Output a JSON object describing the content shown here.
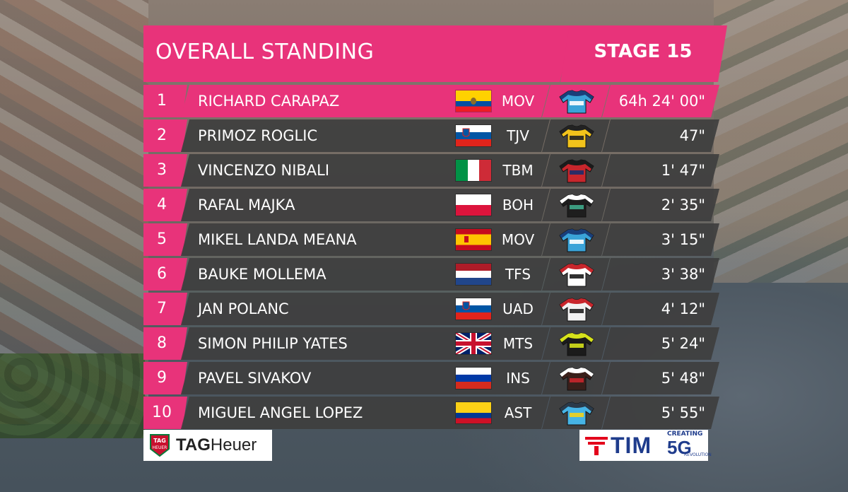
{
  "header": {
    "title": "OVERALL STANDING",
    "stage": "STAGE 15"
  },
  "riders": [
    {
      "rank": "1",
      "name": "RICHARD CARAPAZ",
      "flag": "ecuador",
      "team": "MOV",
      "gap": "64h 24' 00\"",
      "jersey": {
        "body": "#3aa3d8",
        "trim": "#1a3f7a",
        "accent": "#ffffff"
      }
    },
    {
      "rank": "2",
      "name": "PRIMOZ ROGLIC",
      "flag": "slovenia",
      "team": "TJV",
      "gap": "47\"",
      "jersey": {
        "body": "#f2c31b",
        "trim": "#222222",
        "accent": "#222222"
      }
    },
    {
      "rank": "3",
      "name": "VINCENZO NIBALI",
      "flag": "italy",
      "team": "TBM",
      "gap": "1' 47\"",
      "jersey": {
        "body": "#c8262c",
        "trim": "#1b1b1b",
        "accent": "#1b2e6b"
      }
    },
    {
      "rank": "4",
      "name": "RAFAL MAJKA",
      "flag": "poland",
      "team": "BOH",
      "gap": "2' 35\"",
      "jersey": {
        "body": "#1e1e1e",
        "trim": "#ffffff",
        "accent": "#3fa88a"
      }
    },
    {
      "rank": "5",
      "name": "MIKEL LANDA MEANA",
      "flag": "spain",
      "team": "MOV",
      "gap": "3' 15\"",
      "jersey": {
        "body": "#3aa3d8",
        "trim": "#1a3f7a",
        "accent": "#ffffff"
      }
    },
    {
      "rank": "6",
      "name": "BAUKE MOLLEMA",
      "flag": "netherlands",
      "team": "TFS",
      "gap": "3' 38\"",
      "jersey": {
        "body": "#ffffff",
        "trim": "#c8262c",
        "accent": "#1b1b1b"
      }
    },
    {
      "rank": "7",
      "name": "JAN POLANC",
      "flag": "slovenia",
      "team": "UAD",
      "gap": "4' 12\"",
      "jersey": {
        "body": "#f2f2f2",
        "trim": "#c8262c",
        "accent": "#222222"
      }
    },
    {
      "rank": "8",
      "name": "SIMON PHILIP YATES",
      "flag": "uk",
      "team": "MTS",
      "gap": "5' 24\"",
      "jersey": {
        "body": "#1b1b1b",
        "trim": "#d6e21b",
        "accent": "#d6e21b"
      }
    },
    {
      "rank": "9",
      "name": "PAVEL SIVAKOV",
      "flag": "russia",
      "team": "INS",
      "gap": "5' 48\"",
      "jersey": {
        "body": "#3a1f1a",
        "trim": "#ffffff",
        "accent": "#c8262c"
      }
    },
    {
      "rank": "10",
      "name": "MIGUEL ANGEL LOPEZ",
      "flag": "colombia",
      "team": "AST",
      "gap": "5' 55\"",
      "jersey": {
        "body": "#46b4e6",
        "trim": "#2a3a4a",
        "accent": "#f2d21b"
      }
    }
  ],
  "sponsors": {
    "tag_shield_top": "TAG",
    "tag_shield_bottom": "HEUER",
    "tag_bold": "TAG",
    "tag_rest": "Heuer",
    "tim_name": "TIM",
    "tim_creating": "CREATING",
    "tim_5g": "5G",
    "tim_revolution": "REVOLUTION"
  },
  "colors": {
    "accent_pink": "#e8337a",
    "row_dark": "#3e3e3e",
    "tim_blue": "#1f3c8c"
  }
}
